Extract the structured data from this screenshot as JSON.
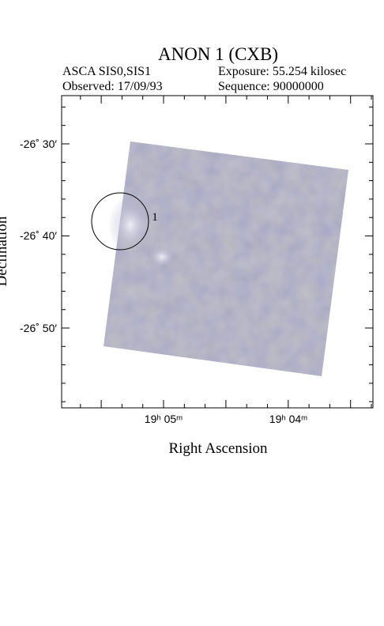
{
  "header": {
    "title": "ANON 1 (CXB)",
    "instrument": "ASCA SIS0,SIS1",
    "exposure": "Exposure: 55.254 kilosec",
    "observed": "Observed: 17/09/93",
    "sequence": "Sequence: 90000000"
  },
  "plot": {
    "y_ticks": [
      "-26˚ 30′",
      "-26˚ 40′",
      "-26˚ 50′"
    ],
    "x_ticks": [
      "19ʰ 05ᵐ",
      "19ʰ 04ᵐ"
    ],
    "x_label": "Right Ascension",
    "y_label": "Declination",
    "source_label": "1"
  }
}
